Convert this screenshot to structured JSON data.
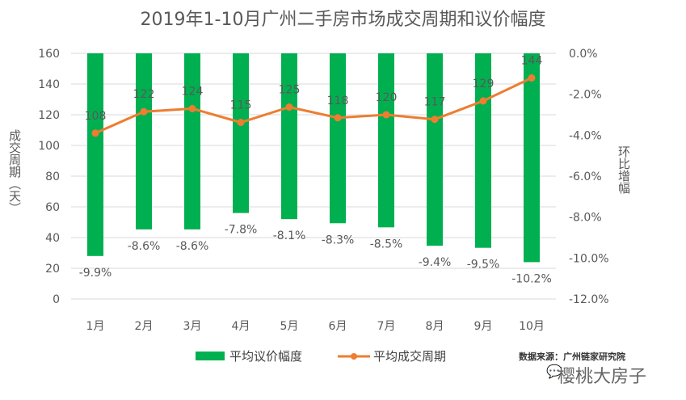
{
  "chart_data": {
    "type": "bar+line",
    "title": "2019年1-10月广州二手房市场成交周期和议价幅度",
    "categories": [
      "1月",
      "2月",
      "3月",
      "4月",
      "5月",
      "6月",
      "7月",
      "8月",
      "9月",
      "10月"
    ],
    "series": [
      {
        "name": "平均议价幅度",
        "type": "bar",
        "axis": "right",
        "values": [
          -9.9,
          -8.6,
          -8.6,
          -7.8,
          -8.1,
          -8.3,
          -8.5,
          -9.4,
          -9.5,
          -10.2
        ],
        "labels": [
          "-9.9%",
          "-8.6%",
          "-8.6%",
          "-7.8%",
          "-8.1%",
          "-8.3%",
          "-8.5%",
          "-9.4%",
          "-9.5%",
          "-10.2%"
        ],
        "color": "#00B050"
      },
      {
        "name": "平均成交周期",
        "type": "line",
        "axis": "left",
        "values": [
          108,
          122,
          124,
          115,
          125,
          118,
          120,
          117,
          129,
          144
        ],
        "color": "#ED7D31"
      }
    ],
    "ylabel": "成交周期（天）",
    "ylim": [
      0,
      160
    ],
    "yticks": [
      "0",
      "20",
      "40",
      "60",
      "80",
      "100",
      "120",
      "140",
      "160"
    ],
    "y2label": "环比增幅",
    "y2lim": [
      -12,
      0
    ],
    "y2ticks": [
      "0.0%",
      "-2.0%",
      "-4.0%",
      "-6.0%",
      "-8.0%",
      "-10.0%",
      "-12.0%"
    ],
    "grid": true,
    "legend": "bottom"
  },
  "source": "数据来源：广州链家研究院",
  "watermark": "樱桃大房子"
}
